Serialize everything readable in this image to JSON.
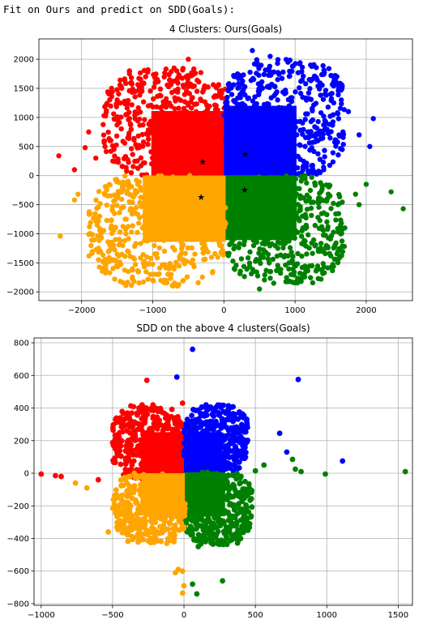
{
  "cell_output": "Fit on Ours and predict on SDD(Goals):",
  "colors": {
    "red": "#ff0000",
    "blue": "#0000ff",
    "green": "#008000",
    "orange": "#ffa500",
    "centroid": "#000000"
  },
  "chart_data": [
    {
      "type": "scatter",
      "title": "4 Clusters: Ours(Goals)",
      "xlabel": "",
      "ylabel": "",
      "xlim": [
        -2600,
        2650
      ],
      "ylim": [
        -2150,
        2350
      ],
      "xticks": [
        -2000,
        -1000,
        0,
        1000,
        2000
      ],
      "yticks": [
        -2000,
        -1500,
        -1000,
        -500,
        0,
        500,
        1000,
        1500,
        2000
      ],
      "grid": true,
      "clusters": [
        {
          "color": "red",
          "region": {
            "x": [
              -1700,
              80
            ],
            "y": [
              0,
              1850
            ]
          },
          "outliers": [
            [
              -2320,
              340
            ],
            [
              -2100,
              100
            ],
            [
              -1950,
              480
            ],
            [
              -1900,
              750
            ],
            [
              -1500,
              1300
            ],
            [
              -1300,
              1600
            ],
            [
              -1100,
              1700
            ],
            [
              -700,
              1850
            ],
            [
              -500,
              2000
            ],
            [
              -1600,
              600
            ],
            [
              -1800,
              300
            ]
          ]
        },
        {
          "color": "blue",
          "region": {
            "x": [
              0,
              1700
            ],
            "y": [
              0,
              2000
            ]
          },
          "outliers": [
            [
              400,
              2150
            ],
            [
              650,
              2050
            ],
            [
              900,
              1950
            ],
            [
              1200,
              1650
            ],
            [
              1500,
              1400
            ],
            [
              1750,
              1100
            ],
            [
              2100,
              980
            ],
            [
              2050,
              500
            ],
            [
              1900,
              700
            ],
            [
              1650,
              1300
            ]
          ]
        },
        {
          "color": "green",
          "region": {
            "x": [
              0,
              1700
            ],
            "y": [
              -1850,
              0
            ]
          },
          "outliers": [
            [
              2350,
              -280
            ],
            [
              2520,
              -570
            ],
            [
              2000,
              -150
            ],
            [
              1900,
              -500
            ],
            [
              1700,
              -900
            ],
            [
              1350,
              -1300
            ],
            [
              1100,
              -1580
            ],
            [
              700,
              -1850
            ],
            [
              500,
              -1950
            ],
            [
              1850,
              -320
            ]
          ]
        },
        {
          "color": "orange",
          "region": {
            "x": [
              -1900,
              40
            ],
            "y": [
              -1900,
              0
            ]
          },
          "outliers": [
            [
              -2300,
              -1040
            ],
            [
              -2050,
              -320
            ],
            [
              -2100,
              -420
            ],
            [
              -1900,
              -1010
            ],
            [
              -1700,
              -950
            ],
            [
              -1500,
              -1350
            ],
            [
              -1200,
              -1650
            ],
            [
              -1000,
              -1800
            ],
            [
              -650,
              -1900
            ],
            [
              -1550,
              -1200
            ]
          ]
        }
      ],
      "centroids": [
        [
          -300,
          240
        ],
        [
          -320,
          -370
        ],
        [
          300,
          370
        ],
        [
          290,
          -240
        ]
      ]
    },
    {
      "type": "scatter",
      "title": "SDD on the above 4 clusters(Goals)",
      "xlabel": "",
      "ylabel": "",
      "xlim": [
        -1050,
        1600
      ],
      "ylim": [
        -810,
        830
      ],
      "xticks": [
        -1000,
        -500,
        0,
        500,
        1000,
        1500
      ],
      "yticks": [
        -800,
        -600,
        -400,
        -200,
        0,
        200,
        400,
        600,
        800
      ],
      "grid": true,
      "clusters": [
        {
          "color": "red",
          "region": {
            "x": [
              -500,
              20
            ],
            "y": [
              -40,
              420
            ]
          },
          "outliers": [
            [
              -1000,
              -5
            ],
            [
              -900,
              -15
            ],
            [
              -860,
              -20
            ],
            [
              -600,
              -40
            ],
            [
              -260,
              570
            ],
            [
              -10,
              430
            ],
            [
              -350,
              260
            ],
            [
              -300,
              300
            ]
          ]
        },
        {
          "color": "blue",
          "region": {
            "x": [
              0,
              450
            ],
            "y": [
              0,
              420
            ]
          },
          "outliers": [
            [
              60,
              760
            ],
            [
              -50,
              590
            ],
            [
              800,
              575
            ],
            [
              670,
              245
            ],
            [
              720,
              130
            ],
            [
              1110,
              75
            ],
            [
              420,
              190
            ],
            [
              300,
              230
            ]
          ]
        },
        {
          "color": "green",
          "region": {
            "x": [
              0,
              480
            ],
            "y": [
              -440,
              10
            ]
          },
          "outliers": [
            [
              1550,
              10
            ],
            [
              990,
              -5
            ],
            [
              820,
              10
            ],
            [
              780,
              25
            ],
            [
              760,
              85
            ],
            [
              500,
              15
            ],
            [
              560,
              50
            ],
            [
              270,
              -660
            ],
            [
              90,
              -740
            ],
            [
              60,
              -680
            ],
            [
              100,
              -450
            ]
          ]
        },
        {
          "color": "orange",
          "region": {
            "x": [
              -500,
              10
            ],
            "y": [
              -430,
              0
            ]
          },
          "outliers": [
            [
              -760,
              -60
            ],
            [
              -680,
              -90
            ],
            [
              -530,
              -360
            ],
            [
              -380,
              -130
            ],
            [
              -400,
              -60
            ],
            [
              -40,
              -590
            ],
            [
              -10,
              -600
            ],
            [
              -60,
              -610
            ],
            [
              0,
              -690
            ],
            [
              -10,
              -735
            ],
            [
              -120,
              -430
            ],
            [
              -70,
              -420
            ]
          ]
        }
      ],
      "centroids": []
    }
  ]
}
